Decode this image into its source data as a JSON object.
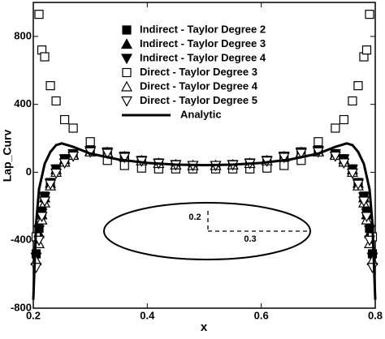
{
  "chart_data": {
    "type": "scatter",
    "xlabel": "x",
    "ylabel": "Lap_Curv",
    "xlim": [
      0.2,
      0.8
    ],
    "ylim": [
      -800,
      1000
    ],
    "xticks": [
      0.2,
      0.4,
      0.6,
      0.8
    ],
    "yticks": [
      -800,
      -400,
      0,
      400,
      800
    ],
    "legend": "upper center",
    "x": [
      0.205,
      0.21,
      0.215,
      0.22,
      0.23,
      0.24,
      0.255,
      0.27,
      0.3,
      0.33,
      0.36,
      0.39,
      0.42,
      0.45,
      0.48,
      0.52,
      0.55,
      0.58,
      0.61,
      0.64,
      0.67,
      0.7,
      0.73,
      0.745,
      0.76,
      0.77,
      0.78,
      0.785,
      0.79,
      0.795
    ],
    "series": [
      {
        "name": "Indirect - Taylor Degree 2",
        "color": "#000000",
        "marker": "square-filled",
        "values": [
          -480,
          -330,
          -230,
          -140,
          -60,
          20,
          80,
          110,
          130,
          120,
          95,
          70,
          55,
          45,
          40,
          40,
          45,
          55,
          70,
          95,
          120,
          130,
          110,
          80,
          20,
          -60,
          -140,
          -230,
          -330,
          -480
        ]
      },
      {
        "name": "Indirect - Taylor Degree 3",
        "color": "#000000",
        "marker": "triangle-up-filled",
        "values": [
          -520,
          -360,
          -250,
          -150,
          -65,
          15,
          75,
          105,
          125,
          118,
          92,
          68,
          53,
          44,
          40,
          40,
          44,
          53,
          68,
          92,
          118,
          125,
          105,
          75,
          15,
          -65,
          -150,
          -250,
          -360,
          -520
        ]
      },
      {
        "name": "Indirect - Taylor Degree 4",
        "color": "#000000",
        "marker": "triangle-down-filled",
        "values": [
          -500,
          -340,
          -240,
          -145,
          -62,
          18,
          78,
          108,
          128,
          119,
          94,
          69,
          54,
          45,
          40,
          40,
          45,
          54,
          69,
          94,
          119,
          128,
          108,
          78,
          18,
          -62,
          -145,
          -240,
          -340,
          -500
        ]
      },
      {
        "name": "Direct - Taylor Degree 3",
        "color": "#000000",
        "marker": "square-open",
        "values": [
          -380,
          930,
          720,
          680,
          510,
          420,
          310,
          260,
          180,
          70,
          40,
          25,
          20,
          20,
          20,
          20,
          20,
          20,
          25,
          40,
          70,
          180,
          260,
          310,
          420,
          510,
          680,
          720,
          930,
          -380
        ]
      },
      {
        "name": "Direct - Taylor Degree 4",
        "color": "#000000",
        "marker": "triangle-up-open",
        "values": [
          -520,
          -420,
          -280,
          -180,
          -80,
          0,
          60,
          100,
          120,
          115,
          90,
          68,
          52,
          44,
          40,
          40,
          44,
          52,
          68,
          90,
          115,
          120,
          100,
          60,
          0,
          -80,
          -180,
          -280,
          -420,
          -520
        ]
      },
      {
        "name": "Direct - Taylor Degree 5",
        "color": "#000000",
        "marker": "triangle-down-open",
        "values": [
          -560,
          -400,
          -260,
          -170,
          -70,
          -5,
          55,
          95,
          120,
          112,
          88,
          66,
          52,
          44,
          40,
          40,
          44,
          52,
          66,
          88,
          112,
          120,
          95,
          55,
          -5,
          -70,
          -170,
          -260,
          -400,
          -560
        ]
      },
      {
        "name": "Analytic",
        "color": "#000000",
        "marker": "line",
        "x": [
          0.2,
          0.205,
          0.21,
          0.22,
          0.23,
          0.24,
          0.25,
          0.27,
          0.3,
          0.35,
          0.4,
          0.45,
          0.5,
          0.55,
          0.6,
          0.65,
          0.7,
          0.73,
          0.75,
          0.76,
          0.77,
          0.78,
          0.79,
          0.795,
          0.8
        ],
        "values": [
          -750,
          -300,
          -100,
          50,
          120,
          160,
          170,
          150,
          110,
          75,
          55,
          45,
          42,
          45,
          55,
          75,
          110,
          150,
          170,
          160,
          120,
          50,
          -100,
          -300,
          -750
        ]
      }
    ],
    "annotations": [
      "0.2",
      "0.3"
    ]
  }
}
